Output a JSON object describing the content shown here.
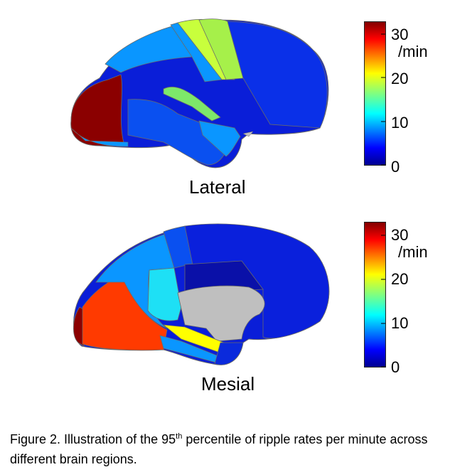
{
  "figure": {
    "caption_prefix": "Figure 2. Illustration of the 95",
    "caption_superscript": "th",
    "caption_suffix": " percentile of ripple rates per minute across different brain regions."
  },
  "panels": [
    {
      "view_label": "Lateral",
      "colorbar": {
        "unit": "/min",
        "ticks": [
          "30",
          "20",
          "10",
          "0"
        ]
      }
    },
    {
      "view_label": "Mesial",
      "colorbar": {
        "unit": "/min",
        "ticks": [
          "30",
          "20",
          "10",
          "0"
        ]
      }
    }
  ],
  "colormap": [
    "#7f0000",
    "#ff0000",
    "#ff8000",
    "#ffff00",
    "#80ff80",
    "#00ffff",
    "#0080ff",
    "#0000ff",
    "#00008f"
  ],
  "region_colors": {
    "very_high": "#8b0000",
    "high": "#ff3a00",
    "medium_high": "#c8ff3c",
    "medium": "#1ee0f5",
    "medium_low": "#0a96ff",
    "low": "#0046f0",
    "very_low": "#0a14d2",
    "no_data": "#bfbfbf"
  }
}
